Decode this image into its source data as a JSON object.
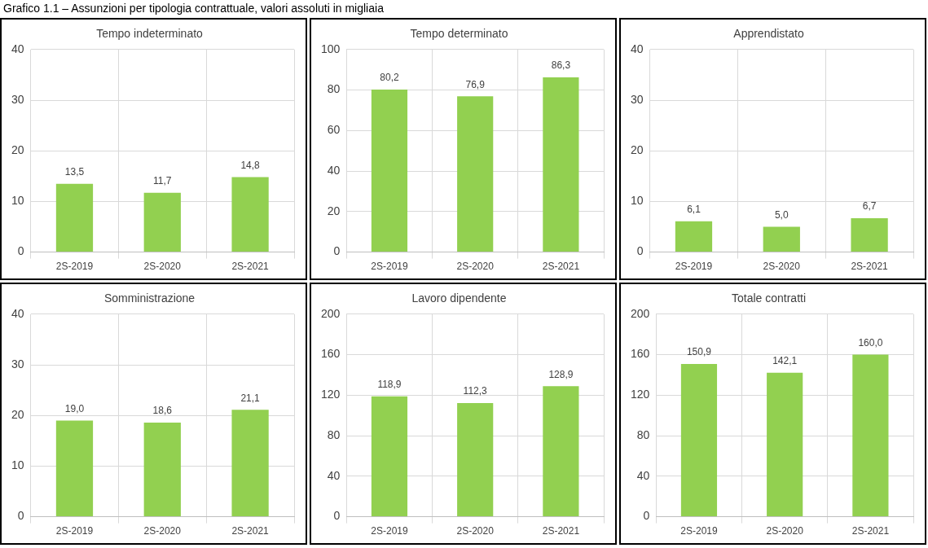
{
  "chart_data": [
    {
      "type": "bar",
      "title": "Tempo indeterminato",
      "annotations": [
        "Grafico 1.1 – Assunzioni per tipologia contrattuale, valori assoluti in migliaia"
      ],
      "categories": [
        "2S-2019",
        "2S-2020",
        "2S-2021"
      ],
      "values": [
        13.5,
        11.7,
        14.8
      ],
      "value_labels": [
        "13,5",
        "11,7",
        "14,8"
      ],
      "color": "#92d050",
      "ylim": [
        0,
        40
      ],
      "yticks": [
        0,
        10,
        20,
        30,
        40
      ],
      "grid": true,
      "legend": false
    },
    {
      "type": "bar",
      "title": "Tempo determinato",
      "categories": [
        "2S-2019",
        "2S-2020",
        "2S-2021"
      ],
      "values": [
        80.2,
        76.9,
        86.3
      ],
      "value_labels": [
        "80,2",
        "76,9",
        "86,3"
      ],
      "color": "#92d050",
      "ylim": [
        0,
        100
      ],
      "yticks": [
        0,
        20,
        40,
        60,
        80,
        100
      ],
      "grid": true,
      "legend": false
    },
    {
      "type": "bar",
      "title": "Apprendistato",
      "categories": [
        "2S-2019",
        "2S-2020",
        "2S-2021"
      ],
      "values": [
        6.1,
        5.0,
        6.7
      ],
      "value_labels": [
        "6,1",
        "5,0",
        "6,7"
      ],
      "color": "#92d050",
      "ylim": [
        0,
        40
      ],
      "yticks": [
        0,
        10,
        20,
        30,
        40
      ],
      "grid": true,
      "legend": false
    },
    {
      "type": "bar",
      "title": "Somministrazione",
      "categories": [
        "2S-2019",
        "2S-2020",
        "2S-2021"
      ],
      "values": [
        19.0,
        18.6,
        21.1
      ],
      "value_labels": [
        "19,0",
        "18,6",
        "21,1"
      ],
      "color": "#92d050",
      "ylim": [
        0,
        40
      ],
      "yticks": [
        0,
        10,
        20,
        30,
        40
      ],
      "grid": true,
      "legend": false
    },
    {
      "type": "bar",
      "title": "Lavoro dipendente",
      "categories": [
        "2S-2019",
        "2S-2020",
        "2S-2021"
      ],
      "values": [
        118.9,
        112.3,
        128.9
      ],
      "value_labels": [
        "118,9",
        "112,3",
        "128,9"
      ],
      "color": "#92d050",
      "ylim": [
        0,
        200
      ],
      "yticks": [
        0,
        40,
        80,
        120,
        160,
        200
      ],
      "grid": true,
      "legend": false
    },
    {
      "type": "bar",
      "title": "Totale contratti",
      "categories": [
        "2S-2019",
        "2S-2020",
        "2S-2021"
      ],
      "values": [
        150.9,
        142.1,
        160.0
      ],
      "value_labels": [
        "150,9",
        "142,1",
        "160,0"
      ],
      "color": "#92d050",
      "ylim": [
        0,
        200
      ],
      "yticks": [
        0,
        40,
        80,
        120,
        160,
        200
      ],
      "grid": true,
      "legend": false
    }
  ]
}
